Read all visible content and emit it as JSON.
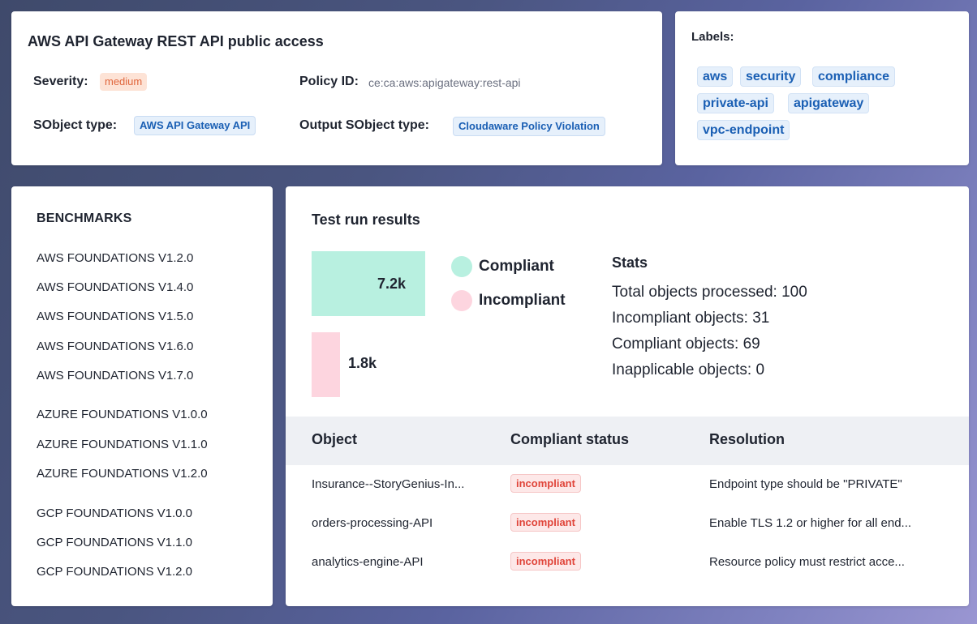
{
  "policy": {
    "title": "AWS API Gateway REST API public access",
    "severity_label": "Severity:",
    "severity_value": "medium",
    "policy_id_label": "Policy ID:",
    "policy_id_value": "ce:ca:aws:apigateway:rest-api",
    "sobject_label": "SObject type:",
    "sobject_value": "AWS API Gateway API",
    "output_sobject_label": "Output SObject type:",
    "output_sobject_value": "Cloudaware Policy Violation"
  },
  "labels": {
    "title": "Labels:",
    "items": [
      "aws",
      "security",
      "compliance",
      "private-api",
      "apigateway",
      "vpc-endpoint"
    ]
  },
  "benchmarks": {
    "title": "BENCHMARKS",
    "items": [
      "AWS FOUNDATIONS V1.2.0",
      "AWS FOUNDATIONS V1.4.0",
      "AWS FOUNDATIONS V1.5.0",
      "AWS FOUNDATIONS V1.6.0",
      "AWS FOUNDATIONS V1.7.0",
      "AZURE FOUNDATIONS V1.0.0",
      "AZURE FOUNDATIONS V1.1.0",
      "AZURE FOUNDATIONS V1.2.0",
      "GCP FOUNDATIONS V1.0.0",
      "GCP FOUNDATIONS V1.1.0",
      "GCP FOUNDATIONS V1.2.0"
    ]
  },
  "results": {
    "title": "Test run results",
    "compliant_label": "7.2k",
    "incompliant_label": "1.8k",
    "legend": {
      "compliant": "Compliant",
      "incompliant": "Incompliant"
    },
    "colors": {
      "compliant": "#b8f0e0",
      "incompliant": "#fdd5df"
    },
    "stats_title": "Stats",
    "stats": [
      "Total objects processed: 100",
      "Incompliant objects: 31",
      "Compliant objects: 69",
      "Inapplicable objects: 0"
    ],
    "table": {
      "headers": [
        "Object",
        "Compliant status",
        "Resolution"
      ],
      "rows": [
        {
          "object": "Insurance--StoryGenius-In...",
          "status": "incompliant",
          "resolution": "Endpoint type should be \"PRIVATE\""
        },
        {
          "object": "orders-processing-API",
          "status": "incompliant",
          "resolution": "Enable TLS 1.2 or higher for all end..."
        },
        {
          "object": "analytics-engine-API",
          "status": "incompliant",
          "resolution": "Resource policy must restrict acce..."
        }
      ]
    }
  },
  "chart_data": {
    "type": "bar",
    "categories": [
      "Compliant",
      "Incompliant"
    ],
    "values": [
      7.2,
      1.8
    ],
    "data_labels": [
      "7.2k",
      "1.8k"
    ],
    "colors": [
      "#b8f0e0",
      "#fdd5df"
    ]
  }
}
